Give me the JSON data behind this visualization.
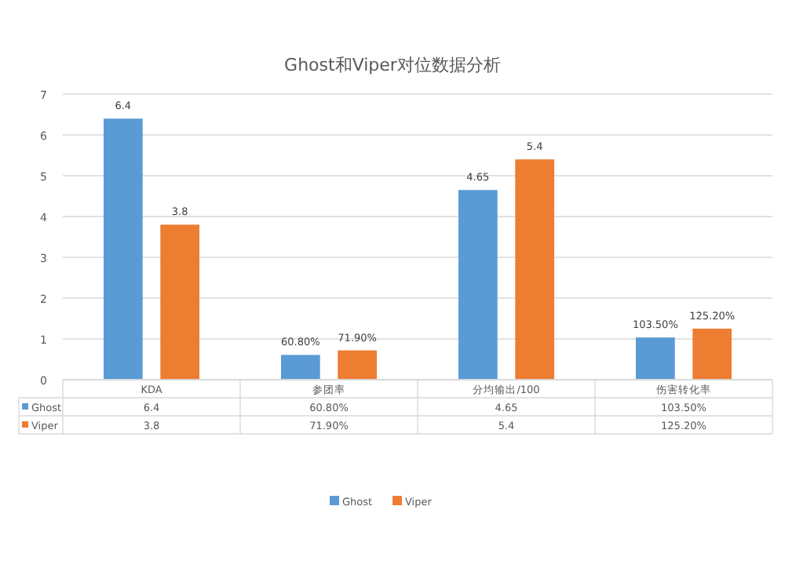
{
  "chart_data": {
    "type": "bar",
    "title": "Ghost和Viper对位数据分析",
    "categories": [
      "KDA",
      "参团率",
      "分均输出/100",
      "伤害转化率"
    ],
    "series": [
      {
        "name": "Ghost",
        "color": "#5b9bd5",
        "values": [
          6.4,
          0.608,
          4.65,
          1.035
        ],
        "value_labels": [
          "6.4",
          "60.80%",
          "4.65",
          "103.50%"
        ]
      },
      {
        "name": "Viper",
        "color": "#ed7d31",
        "values": [
          3.8,
          0.719,
          5.4,
          1.252
        ],
        "value_labels": [
          "3.8",
          "71.90%",
          "5.4",
          "125.20%"
        ]
      }
    ],
    "ylim": [
      0,
      7
    ],
    "yticks": [
      0,
      1,
      2,
      3,
      4,
      5,
      6,
      7
    ],
    "grid": "y",
    "legend": "bottom"
  }
}
